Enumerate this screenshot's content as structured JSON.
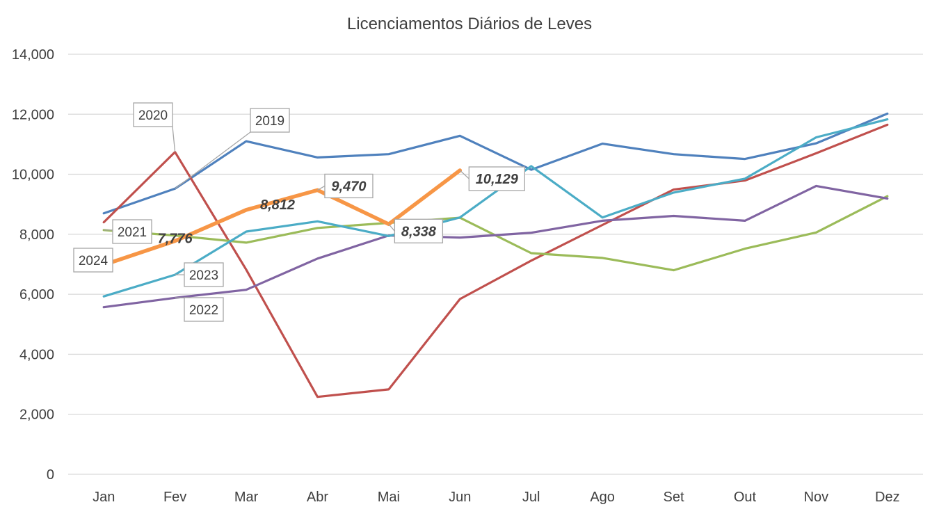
{
  "chart_data": {
    "type": "line",
    "title": "Licenciamentos Diários de Leves",
    "xlabel": "",
    "ylabel": "",
    "ylim": [
      0,
      14000
    ],
    "yticks": [
      0,
      2000,
      4000,
      6000,
      8000,
      10000,
      12000,
      14000
    ],
    "ytick_labels": [
      "0",
      "2,000",
      "4,000",
      "6,000",
      "8,000",
      "10,000",
      "12,000",
      "14,000"
    ],
    "categories": [
      "Jan",
      "Fev",
      "Mar",
      "Abr",
      "Mai",
      "Jun",
      "Jul",
      "Ago",
      "Set",
      "Out",
      "Nov",
      "Dez"
    ],
    "grid": true,
    "legend": "none",
    "series": [
      {
        "name": "2019",
        "color": "#4f81bd",
        "values": [
          8700,
          9520,
          11100,
          10560,
          10670,
          11280,
          10150,
          11020,
          10670,
          10510,
          11030,
          12020
        ]
      },
      {
        "name": "2020",
        "color": "#c0504d",
        "values": [
          8400,
          10740,
          6820,
          2580,
          2830,
          5840,
          7120,
          8310,
          9490,
          9790,
          10700,
          11650
        ]
      },
      {
        "name": "2021",
        "color": "#9bbb59",
        "values": [
          8140,
          7960,
          7720,
          8210,
          8380,
          8550,
          7370,
          7210,
          6800,
          7520,
          8060,
          9270
        ]
      },
      {
        "name": "2022",
        "color": "#8064a2",
        "values": [
          5570,
          5880,
          6150,
          7190,
          7960,
          7890,
          8050,
          8450,
          8610,
          8450,
          9610,
          9190
        ]
      },
      {
        "name": "2023",
        "color": "#4bacc6",
        "values": [
          5930,
          6650,
          8090,
          8430,
          7940,
          8560,
          10270,
          8560,
          9390,
          9850,
          11230,
          11830
        ]
      },
      {
        "name": "2024",
        "color": "#f79646",
        "values": [
          6980,
          7776,
          8812,
          9470,
          8338,
          10129,
          null,
          null,
          null,
          null,
          null,
          null
        ],
        "data_labels": [
          "",
          "7,776",
          "8,812",
          "9,470",
          "8,338",
          "10,129",
          "",
          "",
          "",
          "",
          "",
          ""
        ]
      }
    ]
  }
}
